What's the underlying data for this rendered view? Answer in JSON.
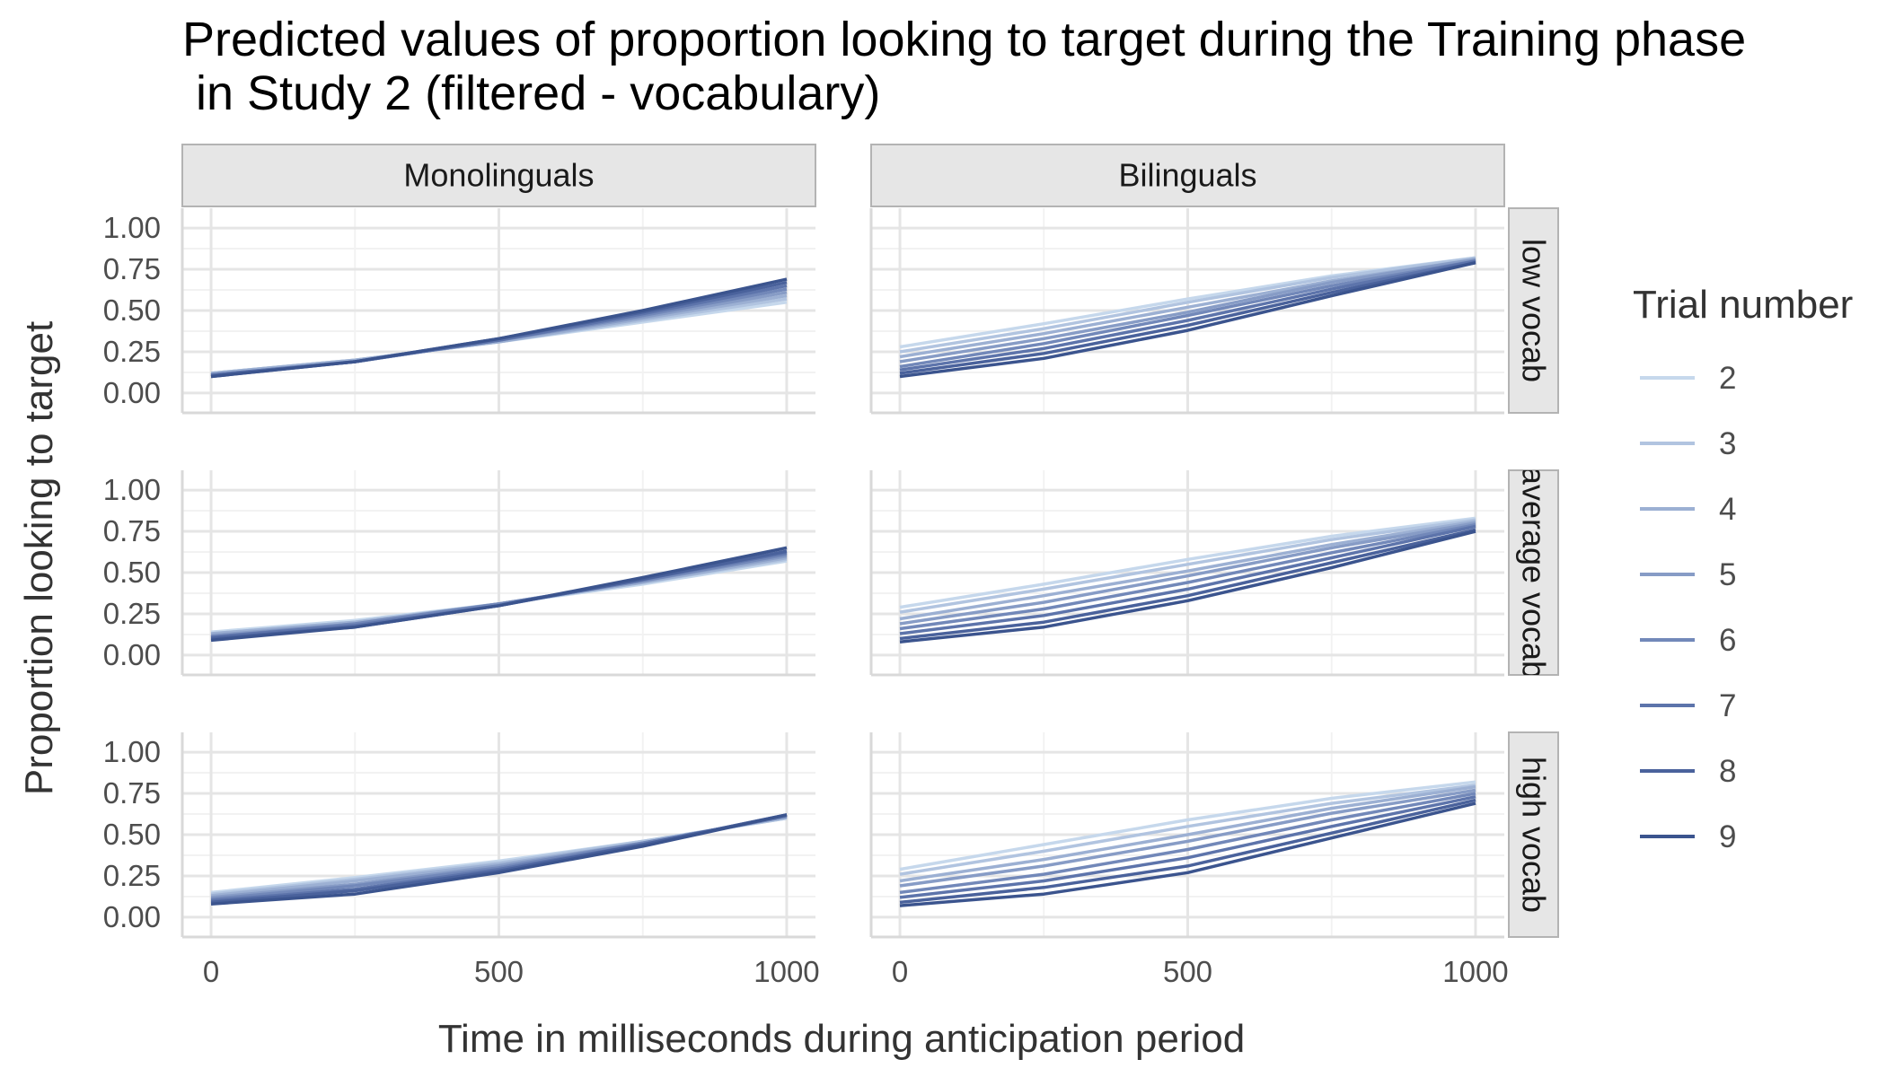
{
  "chart_data": {
    "type": "line",
    "title_lines": [
      "Predicted values of proportion looking to target during the Training phase",
      " in Study 2 (filtered - vocabulary)"
    ],
    "xlabel": "Time in milliseconds during anticipation period",
    "ylabel": "Proportion looking to target",
    "xlim": [
      -50,
      1050
    ],
    "ylim": [
      -0.12,
      1.12
    ],
    "x_ticks": [
      0,
      500,
      1000
    ],
    "y_ticks": [
      0,
      0.25,
      0.5,
      0.75,
      1.0
    ],
    "y_tick_labels": [
      "0.00",
      "0.25",
      "0.50",
      "0.75",
      "1.00"
    ],
    "columns": [
      "Monolinguals",
      "Bilinguals"
    ],
    "rows": [
      "low vocab",
      "average vocab",
      "high vocab"
    ],
    "legend": {
      "title": "Trial number",
      "entries": [
        "2",
        "3",
        "4",
        "5",
        "6",
        "7",
        "8",
        "9"
      ],
      "colors": [
        "#c6d8ec",
        "#b1c4e0",
        "#9cb0d3",
        "#879cc6",
        "#7288b9",
        "#5d74ab",
        "#4a629c",
        "#3b548e"
      ]
    },
    "x": [
      0,
      250,
      500,
      750,
      1000
    ],
    "panels": [
      {
        "column": "Monolinguals",
        "row": "low vocab",
        "series": [
          {
            "name": "2",
            "values": [
              0.12,
              0.2,
              0.31,
              0.43,
              0.55
            ]
          },
          {
            "name": "3",
            "values": [
              0.12,
              0.2,
              0.31,
              0.44,
              0.57
            ]
          },
          {
            "name": "4",
            "values": [
              0.12,
              0.2,
              0.31,
              0.45,
              0.59
            ]
          },
          {
            "name": "5",
            "values": [
              0.11,
              0.19,
              0.32,
              0.46,
              0.61
            ]
          },
          {
            "name": "6",
            "values": [
              0.11,
              0.19,
              0.32,
              0.47,
              0.63
            ]
          },
          {
            "name": "7",
            "values": [
              0.11,
              0.19,
              0.32,
              0.48,
              0.65
            ]
          },
          {
            "name": "8",
            "values": [
              0.1,
              0.19,
              0.33,
              0.49,
              0.67
            ]
          },
          {
            "name": "9",
            "values": [
              0.1,
              0.19,
              0.33,
              0.5,
              0.69
            ]
          }
        ]
      },
      {
        "column": "Bilinguals",
        "row": "low vocab",
        "series": [
          {
            "name": "2",
            "values": [
              0.28,
              0.42,
              0.57,
              0.71,
              0.82
            ]
          },
          {
            "name": "3",
            "values": [
              0.25,
              0.39,
              0.55,
              0.7,
              0.82
            ]
          },
          {
            "name": "4",
            "values": [
              0.22,
              0.36,
              0.52,
              0.68,
              0.81
            ]
          },
          {
            "name": "5",
            "values": [
              0.19,
              0.33,
              0.49,
              0.67,
              0.81
            ]
          },
          {
            "name": "6",
            "values": [
              0.16,
              0.3,
              0.47,
              0.65,
              0.8
            ]
          },
          {
            "name": "7",
            "values": [
              0.14,
              0.27,
              0.44,
              0.63,
              0.8
            ]
          },
          {
            "name": "8",
            "values": [
              0.12,
              0.24,
              0.41,
              0.61,
              0.79
            ]
          },
          {
            "name": "9",
            "values": [
              0.1,
              0.21,
              0.38,
              0.59,
              0.79
            ]
          }
        ]
      },
      {
        "column": "Monolinguals",
        "row": "average vocab",
        "series": [
          {
            "name": "2",
            "values": [
              0.14,
              0.21,
              0.31,
              0.43,
              0.57
            ]
          },
          {
            "name": "3",
            "values": [
              0.13,
              0.2,
              0.31,
              0.44,
              0.58
            ]
          },
          {
            "name": "4",
            "values": [
              0.13,
              0.2,
              0.31,
              0.44,
              0.59
            ]
          },
          {
            "name": "5",
            "values": [
              0.12,
              0.19,
              0.31,
              0.45,
              0.6
            ]
          },
          {
            "name": "6",
            "values": [
              0.11,
              0.19,
              0.31,
              0.45,
              0.61
            ]
          },
          {
            "name": "7",
            "values": [
              0.11,
              0.18,
              0.3,
              0.46,
              0.62
            ]
          },
          {
            "name": "8",
            "values": [
              0.1,
              0.17,
              0.3,
              0.46,
              0.63
            ]
          },
          {
            "name": "9",
            "values": [
              0.09,
              0.17,
              0.3,
              0.47,
              0.65
            ]
          }
        ]
      },
      {
        "column": "Bilinguals",
        "row": "average vocab",
        "series": [
          {
            "name": "2",
            "values": [
              0.29,
              0.43,
              0.58,
              0.72,
              0.83
            ]
          },
          {
            "name": "3",
            "values": [
              0.26,
              0.4,
              0.55,
              0.7,
              0.82
            ]
          },
          {
            "name": "4",
            "values": [
              0.22,
              0.36,
              0.51,
              0.67,
              0.81
            ]
          },
          {
            "name": "5",
            "values": [
              0.19,
              0.32,
              0.48,
              0.65,
              0.8
            ]
          },
          {
            "name": "6",
            "values": [
              0.16,
              0.28,
              0.44,
              0.62,
              0.79
            ]
          },
          {
            "name": "7",
            "values": [
              0.13,
              0.24,
              0.4,
              0.59,
              0.78
            ]
          },
          {
            "name": "8",
            "values": [
              0.1,
              0.2,
              0.36,
              0.56,
              0.76
            ]
          },
          {
            "name": "9",
            "values": [
              0.08,
              0.17,
              0.33,
              0.53,
              0.75
            ]
          }
        ]
      },
      {
        "column": "Monolinguals",
        "row": "high vocab",
        "series": [
          {
            "name": "2",
            "values": [
              0.15,
              0.24,
              0.34,
              0.46,
              0.6
            ]
          },
          {
            "name": "3",
            "values": [
              0.14,
              0.23,
              0.33,
              0.46,
              0.6
            ]
          },
          {
            "name": "4",
            "values": [
              0.13,
              0.22,
              0.32,
              0.45,
              0.61
            ]
          },
          {
            "name": "5",
            "values": [
              0.12,
              0.2,
              0.31,
              0.45,
              0.61
            ]
          },
          {
            "name": "6",
            "values": [
              0.11,
              0.19,
              0.3,
              0.45,
              0.61
            ]
          },
          {
            "name": "7",
            "values": [
              0.1,
              0.17,
              0.29,
              0.44,
              0.62
            ]
          },
          {
            "name": "8",
            "values": [
              0.09,
              0.16,
              0.28,
              0.44,
              0.62
            ]
          },
          {
            "name": "9",
            "values": [
              0.08,
              0.14,
              0.27,
              0.43,
              0.62
            ]
          }
        ]
      },
      {
        "column": "Bilinguals",
        "row": "high vocab",
        "series": [
          {
            "name": "2",
            "values": [
              0.29,
              0.44,
              0.59,
              0.72,
              0.82
            ]
          },
          {
            "name": "3",
            "values": [
              0.26,
              0.4,
              0.55,
              0.69,
              0.8
            ]
          },
          {
            "name": "4",
            "values": [
              0.22,
              0.35,
              0.5,
              0.66,
              0.79
            ]
          },
          {
            "name": "5",
            "values": [
              0.19,
              0.31,
              0.46,
              0.63,
              0.77
            ]
          },
          {
            "name": "6",
            "values": [
              0.15,
              0.26,
              0.41,
              0.59,
              0.75
            ]
          },
          {
            "name": "7",
            "values": [
              0.12,
              0.22,
              0.36,
              0.55,
              0.73
            ]
          },
          {
            "name": "8",
            "values": [
              0.09,
              0.18,
              0.31,
              0.51,
              0.71
            ]
          },
          {
            "name": "9",
            "values": [
              0.07,
              0.14,
              0.27,
              0.48,
              0.69
            ]
          }
        ]
      }
    ]
  }
}
